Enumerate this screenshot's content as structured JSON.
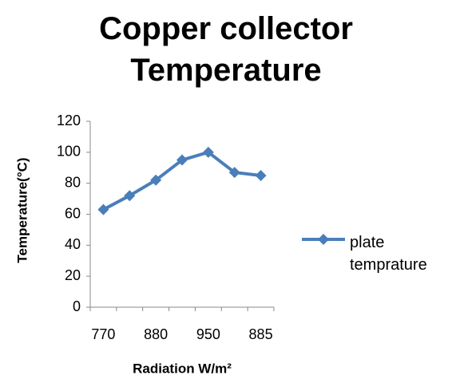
{
  "chart_data": {
    "type": "line",
    "title": "Copper collector Temperature",
    "x_label": "Radiation W/m²",
    "y_label": "Temperature(°C)",
    "categories": [
      "770",
      null,
      "880",
      null,
      "950",
      null,
      "885"
    ],
    "series": [
      {
        "name": "plate temprature",
        "color": "#4a7ebb",
        "values": [
          63,
          72,
          82,
          95,
          100,
          87,
          85
        ]
      }
    ],
    "ylim": [
      0,
      120
    ],
    "yticks": [
      0,
      20,
      40,
      60,
      80,
      100,
      120
    ],
    "grid": false,
    "legend": "right"
  }
}
